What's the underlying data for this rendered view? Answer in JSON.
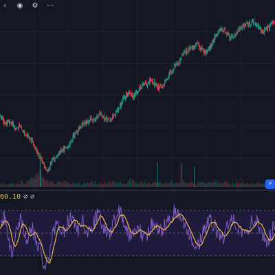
{
  "colors": {
    "background": "#131722",
    "grid": "#1e222d",
    "up": "#26a69a",
    "down": "#ef5350",
    "osc_line": "#7e57c2",
    "osc_signal": "#e8b84a",
    "osc_band_fill": "#1f1b3a",
    "osc_band_line": "#5d5a7a"
  },
  "toolbar": {
    "icons": [
      "collapse-icon",
      "visibility-icon",
      "more-icon"
    ]
  },
  "oscillator": {
    "value": "60.10",
    "extra_1": "∅",
    "extra_2": "∅"
  },
  "alert": {
    "icon": "lightning-icon"
  },
  "chart_data": [
    {
      "type": "candlestick",
      "price_path": [
        120,
        118,
        115,
        113,
        116,
        114,
        112,
        110,
        109,
        111,
        108,
        106,
        104,
        102,
        100,
        98,
        95,
        92,
        88,
        84,
        80,
        76,
        72,
        70,
        74,
        78,
        80,
        83,
        86,
        88,
        90,
        89,
        91,
        93,
        96,
        99,
        102,
        105,
        108,
        110,
        112,
        114,
        113,
        115,
        117,
        116,
        118,
        119,
        121,
        122,
        120,
        118,
        117,
        116,
        118,
        120,
        122,
        125,
        128,
        132,
        136,
        138,
        140,
        141,
        139,
        138,
        140,
        143,
        146,
        148,
        150,
        149,
        151,
        153,
        152,
        150,
        148,
        146,
        145,
        147,
        150,
        152,
        156,
        160,
        163,
        165,
        168,
        170,
        173,
        176,
        178,
        180,
        182,
        181,
        183,
        185,
        186,
        184,
        182,
        180,
        179,
        181,
        183,
        186,
        190,
        193,
        196,
        199,
        200,
        198,
        196,
        194,
        192,
        193,
        195,
        197,
        199,
        200,
        201,
        203,
        205,
        204,
        206,
        207,
        205,
        203,
        201,
        199,
        197,
        198,
        200,
        202,
        204,
        205
      ],
      "volume_path": [
        6,
        4,
        5,
        3,
        4,
        7,
        5,
        4,
        6,
        5,
        8,
        6,
        5,
        7,
        9,
        12,
        15,
        18,
        22,
        30,
        20,
        14,
        10,
        8,
        7,
        9,
        6,
        5,
        7,
        6,
        5,
        8,
        6,
        5,
        4,
        6,
        7,
        5,
        6,
        4,
        5,
        7,
        6,
        5,
        8,
        6,
        7,
        5,
        4,
        6,
        5,
        7,
        6,
        10,
        8,
        6,
        5,
        7,
        6,
        5,
        4,
        6,
        8,
        12,
        9,
        7,
        6,
        5,
        7,
        6,
        8,
        6,
        5,
        4,
        6,
        7,
        5,
        9,
        6,
        5,
        7,
        6,
        5,
        8,
        6,
        7,
        5,
        6,
        30,
        8,
        6,
        5,
        7,
        6,
        5,
        4,
        6,
        7,
        8,
        6,
        5,
        7,
        6,
        8,
        6,
        9,
        7,
        6,
        5,
        7,
        6,
        5,
        4,
        6,
        5,
        7,
        6,
        5,
        8,
        6,
        7,
        5,
        6,
        4,
        5,
        7,
        6,
        5,
        6,
        5,
        7,
        6,
        4,
        5
      ]
    },
    {
      "type": "line",
      "name": "",
      "oscillator_path": [
        55,
        62,
        70,
        58,
        40,
        30,
        22,
        35,
        50,
        65,
        72,
        60,
        48,
        42,
        50,
        58,
        52,
        45,
        38,
        30,
        20,
        10,
        5,
        12,
        25,
        40,
        55,
        62,
        58,
        50,
        46,
        52,
        60,
        68,
        72,
        66,
        58,
        50,
        54,
        60,
        64,
        58,
        52,
        48,
        55,
        62,
        68,
        74,
        70,
        62,
        56,
        50,
        48,
        52,
        58,
        64,
        70,
        76,
        80,
        74,
        66,
        58,
        50,
        46,
        50,
        56,
        62,
        58,
        52,
        46,
        42,
        48,
        54,
        60,
        64,
        60,
        56,
        52,
        50,
        56,
        62,
        66,
        70,
        74,
        78,
        82,
        76,
        68,
        62,
        58,
        54,
        50,
        46,
        42,
        38,
        34,
        38,
        44,
        50,
        56,
        60,
        64,
        68,
        62,
        56,
        50,
        46,
        42,
        48,
        54,
        58,
        62,
        66,
        70,
        64,
        58,
        52,
        48,
        44,
        50,
        56,
        62,
        66,
        70,
        64,
        58,
        52,
        48,
        44,
        40,
        44,
        50,
        56,
        60
      ],
      "signal_period": 5,
      "upper_band": 80,
      "lower_band": 20,
      "mid_band": 50,
      "ylim": [
        0,
        100
      ]
    }
  ]
}
